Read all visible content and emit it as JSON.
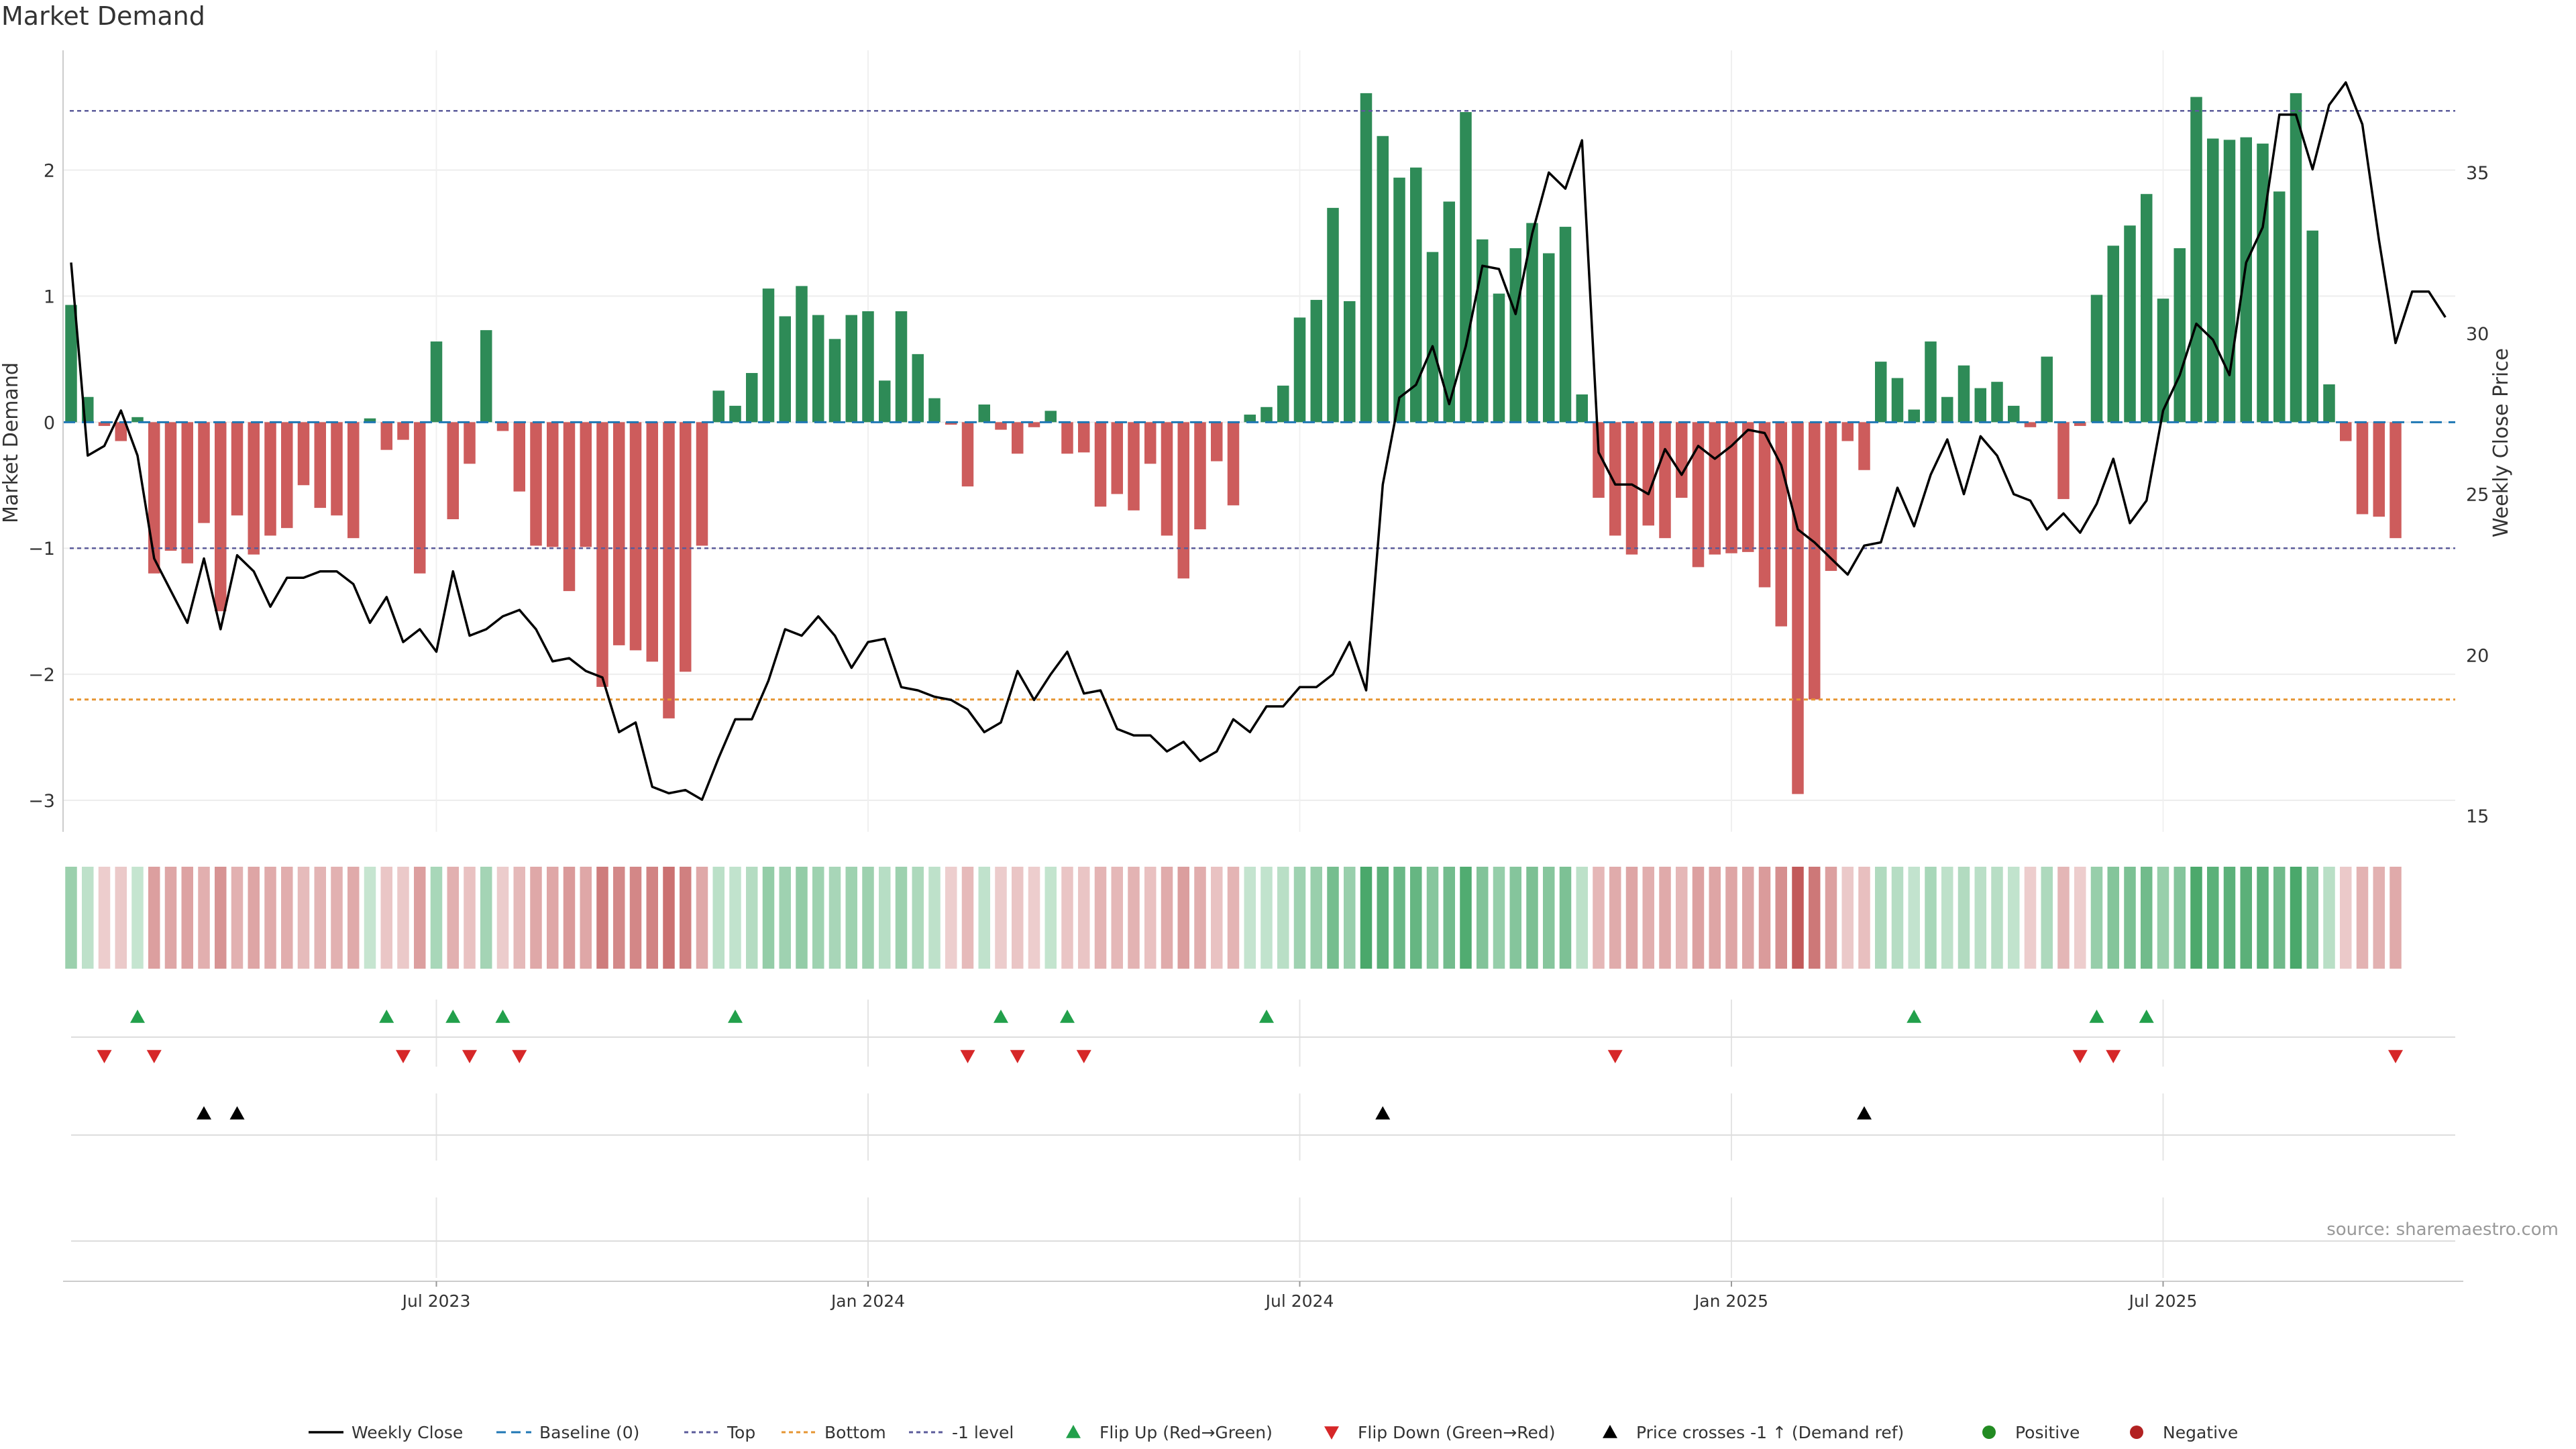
{
  "chart_data": {
    "type": "bar+line",
    "title": "Market Demand",
    "ylabel_left": "Market Demand",
    "ylabel_right": "Weekly Close Price",
    "source": "source: sharemaestro.com",
    "x_tick_labels": [
      "Jul 2023",
      "Jan 2024",
      "Jul 2024",
      "Jan 2025",
      "Jul 2025"
    ],
    "x_tick_week_index": [
      22,
      48,
      74,
      100,
      126
    ],
    "y_left_ticks": [
      "2",
      "1",
      "0",
      "−1",
      "−2",
      "−3"
    ],
    "y_left_tick_values": [
      2,
      1,
      0,
      -1,
      -2,
      -3
    ],
    "y_left_range": [
      -3.25,
      2.95
    ],
    "y_right_ticks": [
      "35",
      "30",
      "25",
      "20",
      "15"
    ],
    "y_right_tick_values": [
      35,
      30,
      25,
      20,
      15
    ],
    "y_right_range": [
      14.5,
      38.8
    ],
    "levels": {
      "top": 2.47,
      "bottom": -2.2,
      "minus_one": -1,
      "baseline": 0
    },
    "demand": [
      0.93,
      0.2,
      -0.03,
      -0.15,
      0.04,
      -1.2,
      -1.02,
      -1.12,
      -0.8,
      -1.5,
      -0.74,
      -1.05,
      -0.9,
      -0.84,
      -0.5,
      -0.68,
      -0.74,
      -0.92,
      0.03,
      -0.22,
      -0.14,
      -1.2,
      0.64,
      -0.77,
      -0.33,
      0.73,
      -0.07,
      -0.55,
      -0.98,
      -0.99,
      -1.34,
      -0.99,
      -2.1,
      -1.77,
      -1.81,
      -1.9,
      -2.35,
      -1.98,
      -0.98,
      0.25,
      0.13,
      0.39,
      1.06,
      0.84,
      1.08,
      0.85,
      0.66,
      0.85,
      0.88,
      0.33,
      0.88,
      0.54,
      0.19,
      -0.02,
      -0.51,
      0.14,
      -0.06,
      -0.25,
      -0.04,
      0.09,
      -0.25,
      -0.24,
      -0.67,
      -0.57,
      -0.7,
      -0.33,
      -0.9,
      -1.24,
      -0.85,
      -0.31,
      -0.66,
      0.06,
      0.12,
      0.29,
      0.83,
      0.97,
      1.7,
      0.96,
      2.61,
      2.27,
      1.94,
      2.02,
      1.35,
      1.75,
      2.46,
      1.45,
      1.02,
      1.38,
      1.58,
      1.34,
      1.55,
      0.22,
      -0.6,
      -0.9,
      -1.05,
      -0.82,
      -0.92,
      -0.6,
      -1.15,
      -1.05,
      -1.04,
      -1.03,
      -1.31,
      -1.62,
      -2.95,
      -2.2,
      -1.18,
      -0.15,
      -0.38,
      0.48,
      0.35,
      0.1,
      0.64,
      0.2,
      0.45,
      0.27,
      0.32,
      0.13,
      -0.04,
      0.52,
      -0.61,
      -0.03,
      1.01,
      1.4,
      1.56,
      1.81,
      0.98,
      1.38,
      2.58,
      2.25,
      2.24,
      2.26,
      2.21,
      1.83,
      2.61,
      1.52,
      0.3,
      -0.15,
      -0.73,
      -0.75,
      -0.92
    ],
    "weekly_close": [
      32.2,
      26.2,
      26.5,
      27.6,
      26.2,
      23.0,
      22.0,
      21.0,
      23.0,
      20.8,
      23.1,
      22.6,
      21.5,
      22.4,
      22.4,
      22.6,
      22.6,
      22.2,
      21.0,
      21.8,
      20.4,
      20.8,
      20.1,
      22.6,
      20.6,
      20.8,
      21.2,
      21.4,
      20.8,
      19.8,
      19.9,
      19.5,
      19.3,
      17.6,
      17.9,
      15.9,
      15.7,
      15.8,
      15.5,
      16.8,
      18.0,
      18.0,
      19.2,
      20.8,
      20.6,
      21.2,
      20.6,
      19.6,
      20.4,
      20.5,
      19.0,
      18.9,
      18.7,
      18.6,
      18.3,
      17.6,
      17.9,
      19.5,
      18.6,
      19.4,
      20.1,
      18.8,
      18.9,
      17.7,
      17.5,
      17.5,
      17.0,
      17.3,
      16.7,
      17.0,
      18.0,
      17.6,
      18.4,
      18.4,
      19.0,
      19.0,
      19.4,
      20.4,
      18.9,
      25.3,
      28.0,
      28.4,
      29.6,
      27.8,
      29.6,
      32.1,
      32.0,
      30.6,
      33.1,
      35.0,
      34.5,
      36.0,
      26.3,
      25.3,
      25.3,
      25.0,
      26.4,
      25.6,
      26.5,
      26.1,
      26.5,
      27.0,
      26.9,
      25.9,
      23.9,
      23.5,
      23.0,
      22.5,
      23.4,
      23.5,
      25.2,
      24.0,
      25.6,
      26.7,
      25.0,
      26.8,
      26.2,
      25.0,
      24.8,
      23.9,
      24.4,
      23.8,
      24.7,
      26.1,
      24.1,
      24.8,
      27.6,
      28.7,
      30.3,
      29.8,
      28.7,
      32.2,
      33.3,
      36.8,
      36.8,
      35.1,
      37.1,
      37.8,
      36.5,
      32.9,
      29.7,
      31.3,
      31.3,
      30.5
    ],
    "flip_up_weeks": [
      4,
      19,
      23,
      26,
      40,
      56,
      60,
      72,
      111,
      122,
      125
    ],
    "flip_down_weeks": [
      2,
      5,
      20,
      24,
      27,
      54,
      57,
      61,
      93,
      121,
      123,
      140
    ],
    "price_cross_weeks": [
      8,
      10,
      79,
      108
    ],
    "legend": [
      "Weekly Close",
      "Baseline (0)",
      "Top",
      "Bottom",
      "-1 level",
      "Flip Up (Red→Green)",
      "Flip Down (Green→Red)",
      "Price crosses -1 ↑ (Demand ref)",
      "Positive",
      "Negative"
    ],
    "colors": {
      "positive_bar": "#2e8b57",
      "negative_bar": "#cd5c5c",
      "close_line": "#000000",
      "baseline": "#1f77b4",
      "top": "#5b5b9a",
      "bottom": "#e69532",
      "minus_one": "#5b5b9a",
      "flip_up": "#22a04b",
      "flip_down": "#d62728",
      "cross": "#000000",
      "positive_dot": "#228b22",
      "negative_dot": "#b22222"
    }
  }
}
